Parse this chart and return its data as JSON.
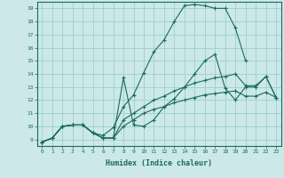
{
  "bg_color": "#cce8e8",
  "line_color": "#1a6b5a",
  "grid_color": "#9dcfcf",
  "xlabel": "Humidex (Indice chaleur)",
  "xlim": [
    -0.5,
    23.5
  ],
  "ylim": [
    8.5,
    19.5
  ],
  "yticks": [
    9,
    10,
    11,
    12,
    13,
    14,
    15,
    16,
    17,
    18,
    19
  ],
  "xticks": [
    0,
    1,
    2,
    3,
    4,
    5,
    6,
    7,
    8,
    9,
    10,
    11,
    12,
    13,
    14,
    15,
    16,
    17,
    18,
    19,
    20,
    21,
    22,
    23
  ],
  "series": [
    {
      "x": [
        0,
        1,
        2,
        3,
        4,
        5,
        6,
        7,
        8,
        9,
        10,
        11,
        12,
        13,
        14,
        15,
        16,
        17,
        18,
        19,
        20
      ],
      "y": [
        8.8,
        9.1,
        10.0,
        10.1,
        10.1,
        9.5,
        9.3,
        9.9,
        11.5,
        12.4,
        14.1,
        15.7,
        16.6,
        18.0,
        19.2,
        19.3,
        19.2,
        19.0,
        19.0,
        17.5,
        15.0
      ]
    },
    {
      "x": [
        0,
        1,
        2,
        3,
        4,
        5,
        6,
        7,
        8,
        9,
        10,
        11,
        12,
        13,
        14,
        15,
        16,
        17,
        18,
        19,
        20,
        21,
        22,
        23
      ],
      "y": [
        8.8,
        9.1,
        10.0,
        10.1,
        10.1,
        9.5,
        9.1,
        9.1,
        13.7,
        10.1,
        10.0,
        10.5,
        11.5,
        12.1,
        13.0,
        14.0,
        15.0,
        15.5,
        12.9,
        12.0,
        13.0,
        13.0,
        13.8,
        12.2
      ]
    },
    {
      "x": [
        0,
        1,
        2,
        3,
        4,
        5,
        6,
        7,
        8,
        9,
        10,
        11,
        12,
        13,
        14,
        15,
        16,
        17,
        18,
        19,
        20,
        21,
        22,
        23
      ],
      "y": [
        8.8,
        9.1,
        10.0,
        10.1,
        10.1,
        9.5,
        9.1,
        9.1,
        10.5,
        11.0,
        11.5,
        12.0,
        12.3,
        12.7,
        13.0,
        13.3,
        13.5,
        13.7,
        13.8,
        14.0,
        13.1,
        13.1,
        13.8,
        12.2
      ]
    },
    {
      "x": [
        0,
        1,
        2,
        3,
        4,
        5,
        6,
        7,
        8,
        9,
        10,
        11,
        12,
        13,
        14,
        15,
        16,
        17,
        18,
        19,
        20,
        21,
        22,
        23
      ],
      "y": [
        8.8,
        9.1,
        10.0,
        10.1,
        10.1,
        9.5,
        9.1,
        9.1,
        10.0,
        10.5,
        11.0,
        11.3,
        11.5,
        11.8,
        12.0,
        12.2,
        12.4,
        12.5,
        12.6,
        12.7,
        12.3,
        12.3,
        12.6,
        12.2
      ]
    }
  ]
}
